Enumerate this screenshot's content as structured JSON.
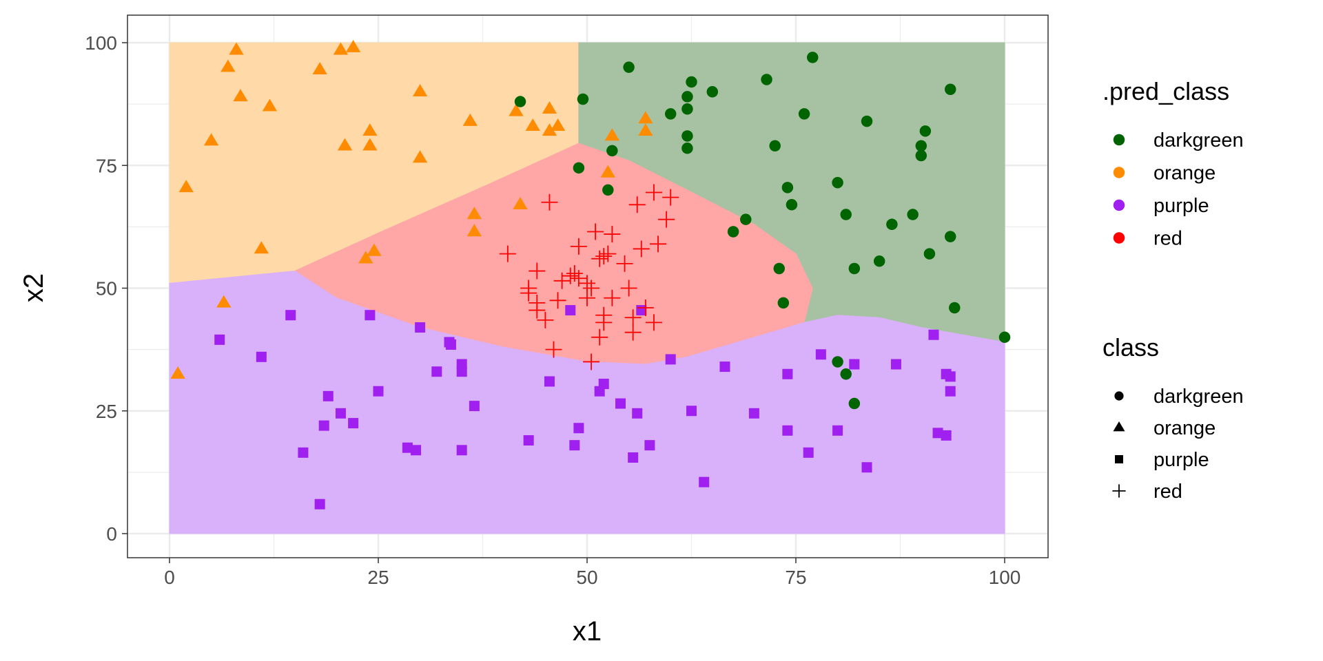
{
  "chart_data": {
    "type": "scatter",
    "title": "",
    "xlabel": "x1",
    "ylabel": "x2",
    "xlim": [
      0,
      100
    ],
    "ylim": [
      0,
      100
    ],
    "xticks": [
      0,
      25,
      50,
      75,
      100
    ],
    "yticks": [
      0,
      25,
      50,
      75,
      100
    ],
    "grid": true,
    "legend_position": "right",
    "legends": [
      {
        "title": ".pred_class",
        "entries": [
          "darkgreen",
          "orange",
          "purple",
          "red"
        ],
        "key": "filled-circle-color"
      },
      {
        "title": "class",
        "entries": [
          "darkgreen",
          "orange",
          "purple",
          "red"
        ],
        "key": "shape"
      }
    ],
    "colors": {
      "darkgreen": "#006400",
      "orange": "#ff8c00",
      "purple": "#a020f0",
      "red": "#ff0000"
    },
    "regions": {
      "orange": [
        [
          0,
          100
        ],
        [
          49,
          100
        ],
        [
          49,
          79.5
        ],
        [
          38,
          71
        ],
        [
          26,
          62
        ],
        [
          15,
          53.5
        ],
        [
          0,
          51
        ]
      ],
      "darkgreen": [
        [
          49,
          100
        ],
        [
          100,
          100
        ],
        [
          100,
          39
        ],
        [
          90,
          42
        ],
        [
          85,
          44
        ],
        [
          80,
          44.5
        ],
        [
          76,
          43
        ],
        [
          77,
          50
        ],
        [
          75,
          57
        ],
        [
          70,
          63
        ],
        [
          62,
          70
        ],
        [
          55,
          76
        ],
        [
          49,
          79.5
        ]
      ],
      "red": [
        [
          49,
          79.5
        ],
        [
          55,
          76
        ],
        [
          62,
          70
        ],
        [
          70,
          63
        ],
        [
          75,
          57
        ],
        [
          77,
          50
        ],
        [
          76,
          43
        ],
        [
          70,
          40
        ],
        [
          62,
          36
        ],
        [
          57,
          34.5
        ],
        [
          50,
          35
        ],
        [
          40,
          38
        ],
        [
          30,
          42
        ],
        [
          20,
          48
        ],
        [
          15,
          53.5
        ],
        [
          26,
          62
        ],
        [
          38,
          71
        ]
      ],
      "purple": [
        [
          0,
          51
        ],
        [
          15,
          53.5
        ],
        [
          20,
          48
        ],
        [
          30,
          42
        ],
        [
          40,
          38
        ],
        [
          50,
          35
        ],
        [
          57,
          34.5
        ],
        [
          62,
          36
        ],
        [
          70,
          40
        ],
        [
          76,
          43
        ],
        [
          80,
          44.5
        ],
        [
          85,
          44
        ],
        [
          90,
          42
        ],
        [
          100,
          39
        ],
        [
          100,
          0
        ],
        [
          0,
          0
        ]
      ]
    },
    "series": [
      {
        "name": "orange",
        "shape": "triangle",
        "points": [
          [
            1,
            32.5
          ],
          [
            2,
            70.5
          ],
          [
            5,
            80
          ],
          [
            6.5,
            47
          ],
          [
            7,
            95
          ],
          [
            8,
            98.5
          ],
          [
            8.5,
            89
          ],
          [
            11,
            58
          ],
          [
            12,
            87
          ],
          [
            18,
            94.5
          ],
          [
            20.5,
            98.5
          ],
          [
            21,
            79
          ],
          [
            22,
            99
          ],
          [
            24,
            82
          ],
          [
            24,
            79
          ],
          [
            23.5,
            56
          ],
          [
            24.5,
            57.5
          ],
          [
            30,
            90
          ],
          [
            30,
            76.5
          ],
          [
            36,
            84
          ],
          [
            36.5,
            65
          ],
          [
            36.5,
            61.5
          ],
          [
            42,
            67
          ],
          [
            41.5,
            86
          ],
          [
            43.5,
            83
          ],
          [
            45.5,
            82
          ],
          [
            45.5,
            86.5
          ],
          [
            46.5,
            83
          ],
          [
            53,
            81
          ],
          [
            52.5,
            73.5
          ],
          [
            57,
            84.5
          ],
          [
            57,
            82
          ]
        ]
      },
      {
        "name": "darkgreen",
        "shape": "circle",
        "points": [
          [
            42,
            88
          ],
          [
            49.5,
            88.5
          ],
          [
            49,
            74.5
          ],
          [
            52.5,
            70
          ],
          [
            53,
            78
          ],
          [
            55,
            95
          ],
          [
            60,
            85.5
          ],
          [
            62,
            86.5
          ],
          [
            62,
            89
          ],
          [
            62.5,
            92
          ],
          [
            62,
            81
          ],
          [
            62,
            78.5
          ],
          [
            65,
            90
          ],
          [
            67.5,
            61.5
          ],
          [
            69,
            64
          ],
          [
            71.5,
            92.5
          ],
          [
            72.5,
            79
          ],
          [
            73,
            54
          ],
          [
            73.5,
            47
          ],
          [
            74,
            70.5
          ],
          [
            74.5,
            67
          ],
          [
            76,
            85.5
          ],
          [
            77,
            97
          ],
          [
            80,
            71.5
          ],
          [
            81,
            65
          ],
          [
            82,
            54
          ],
          [
            83.5,
            84
          ],
          [
            85,
            55.5
          ],
          [
            86.5,
            63
          ],
          [
            89,
            65
          ],
          [
            90,
            79
          ],
          [
            90,
            77
          ],
          [
            90.5,
            82
          ],
          [
            91,
            57
          ],
          [
            93.5,
            90.5
          ],
          [
            93.5,
            60.5
          ],
          [
            94,
            46
          ],
          [
            100,
            40
          ],
          [
            80,
            35
          ],
          [
            81,
            32.5
          ],
          [
            82,
            26.5
          ]
        ]
      },
      {
        "name": "purple",
        "shape": "square",
        "points": [
          [
            6,
            39.5
          ],
          [
            11,
            36
          ],
          [
            14.5,
            44.5
          ],
          [
            16,
            16.5
          ],
          [
            18,
            6
          ],
          [
            18.5,
            22
          ],
          [
            19,
            28
          ],
          [
            20.5,
            24.5
          ],
          [
            22,
            22.5
          ],
          [
            24,
            44.5
          ],
          [
            25,
            29
          ],
          [
            28.5,
            17.5
          ],
          [
            29.5,
            17
          ],
          [
            30,
            42
          ],
          [
            32,
            33
          ],
          [
            33.5,
            39
          ],
          [
            33.7,
            38.5
          ],
          [
            35,
            34.5
          ],
          [
            35,
            33
          ],
          [
            35,
            17
          ],
          [
            36.5,
            26
          ],
          [
            43,
            19
          ],
          [
            45.5,
            31
          ],
          [
            48.5,
            18
          ],
          [
            48,
            45.5
          ],
          [
            49,
            21.5
          ],
          [
            51.5,
            29
          ],
          [
            52,
            30.5
          ],
          [
            54,
            26.5
          ],
          [
            55.5,
            15.5
          ],
          [
            56,
            24.5
          ],
          [
            56.5,
            45.5
          ],
          [
            57.5,
            18
          ],
          [
            60,
            35.5
          ],
          [
            62.5,
            25
          ],
          [
            64,
            10.5
          ],
          [
            66.5,
            34
          ],
          [
            70,
            24.5
          ],
          [
            74,
            32.5
          ],
          [
            74,
            21
          ],
          [
            76.5,
            16.5
          ],
          [
            78,
            36.5
          ],
          [
            80,
            21
          ],
          [
            82,
            34.5
          ],
          [
            83.5,
            13.5
          ],
          [
            87,
            34.5
          ],
          [
            91.5,
            40.5
          ],
          [
            92,
            20.5
          ],
          [
            93,
            32.5
          ],
          [
            93.5,
            32
          ],
          [
            93.5,
            29
          ],
          [
            93,
            20
          ]
        ]
      },
      {
        "name": "red",
        "shape": "plus",
        "points": [
          [
            40.5,
            57
          ],
          [
            43,
            50
          ],
          [
            43,
            49
          ],
          [
            44,
            47
          ],
          [
            44,
            45.5
          ],
          [
            44,
            53.5
          ],
          [
            45,
            43.5
          ],
          [
            45.5,
            67.5
          ],
          [
            46,
            37.5
          ],
          [
            46.5,
            47.5
          ],
          [
            47,
            51.5
          ],
          [
            48,
            52.5
          ],
          [
            48.5,
            53
          ],
          [
            49,
            58.5
          ],
          [
            49,
            52
          ],
          [
            50,
            51
          ],
          [
            50,
            48
          ],
          [
            50.5,
            35
          ],
          [
            50.5,
            50
          ],
          [
            51,
            61.5
          ],
          [
            51.5,
            40
          ],
          [
            51.5,
            56
          ],
          [
            52,
            44.5
          ],
          [
            52,
            43
          ],
          [
            52,
            56.5
          ],
          [
            52.5,
            57
          ],
          [
            53,
            61
          ],
          [
            53,
            48
          ],
          [
            54.5,
            55
          ],
          [
            55,
            50
          ],
          [
            55.5,
            44
          ],
          [
            55.5,
            41
          ],
          [
            56,
            67
          ],
          [
            56.5,
            58
          ],
          [
            57,
            46
          ],
          [
            58,
            43
          ],
          [
            58,
            69.5
          ],
          [
            58.5,
            59
          ],
          [
            59.5,
            64
          ],
          [
            60,
            68.5
          ]
        ]
      }
    ]
  }
}
